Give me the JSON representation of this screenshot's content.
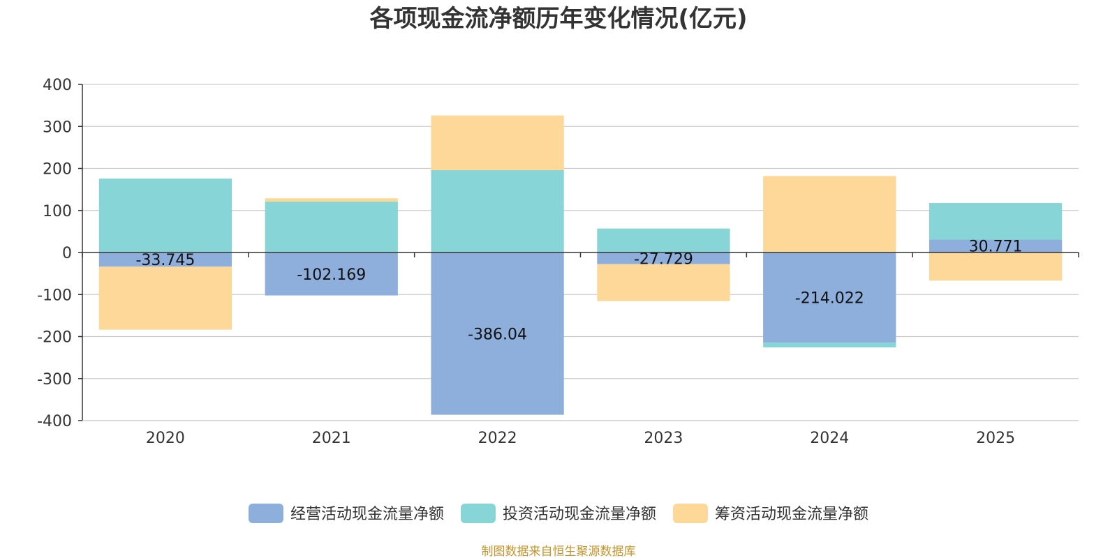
{
  "chart_data": {
    "type": "bar",
    "stacked": true,
    "title": "各项现金流净额历年变化情况(亿元)",
    "categories": [
      "2020",
      "2021",
      "2022",
      "2023",
      "2024",
      "2025"
    ],
    "series": [
      {
        "name": "经营活动现金流量净额",
        "color": "#8eaedb",
        "values": [
          -33.745,
          -102.169,
          -386.04,
          -27.729,
          -214.022,
          30.771
        ],
        "labels": [
          "-33.745",
          "-102.169",
          "-386.04",
          "-27.729",
          "-214.022",
          "30.771"
        ]
      },
      {
        "name": "投资活动现金流量净额",
        "color": "#88d5d8",
        "values": [
          176,
          121,
          196,
          57,
          -12,
          87
        ]
      },
      {
        "name": "筹资活动现金流量净额",
        "color": "#fed898",
        "values": [
          -150,
          8,
          130,
          -88,
          182,
          -67
        ]
      }
    ],
    "yticks": [
      -400,
      -300,
      -200,
      -100,
      0,
      100,
      200,
      300,
      400
    ],
    "ylim": [
      -400,
      400
    ],
    "xlabel": "",
    "ylabel": "",
    "grid": true,
    "legend_position": "bottom-center"
  },
  "source_note": "制图数据来自恒生聚源数据库"
}
